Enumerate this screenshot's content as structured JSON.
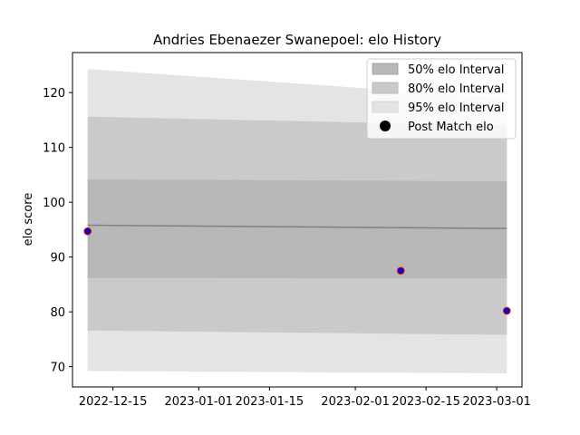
{
  "chart_data": {
    "type": "area",
    "title": "Andries Ebenaezer Swanepoel: elo History",
    "xlabel": "",
    "ylabel": "elo score",
    "xlim": [
      "2022-12-07",
      "2023-03-06"
    ],
    "ylim": [
      66.3,
      127.3
    ],
    "x_ticks": [
      "2022-12-15",
      "2023-01-01",
      "2023-01-15",
      "2023-02-01",
      "2023-02-15",
      "2023-03-01"
    ],
    "y_ticks": [
      70,
      80,
      90,
      100,
      110,
      120
    ],
    "legend_placement": "top-right",
    "legend": [
      "50% elo Interval",
      "80% elo Interval",
      "95% elo Interval",
      "Post Match elo"
    ],
    "colors": {
      "band50": "#b8b8b8",
      "band80": "#cacaca",
      "band95": "#e4e4e4",
      "mean_line": "#808080",
      "point_fill": "#0000cc",
      "point_edge": "#ff0000"
    },
    "bands": {
      "x": [
        "2022-12-10",
        "2023-03-03"
      ],
      "mean": [
        95.8,
        95.2
      ],
      "p50": [
        [
          86.2,
          104.2
        ],
        [
          86.1,
          103.8
        ]
      ],
      "p80": [
        [
          76.6,
          115.6
        ],
        [
          75.8,
          114.0
        ]
      ],
      "p95": [
        [
          69.2,
          124.3
        ],
        [
          68.8,
          119.0
        ]
      ]
    },
    "points": {
      "x": [
        "2022-12-10",
        "2023-02-10",
        "2023-03-03"
      ],
      "y": [
        94.7,
        87.5,
        80.2
      ]
    }
  }
}
